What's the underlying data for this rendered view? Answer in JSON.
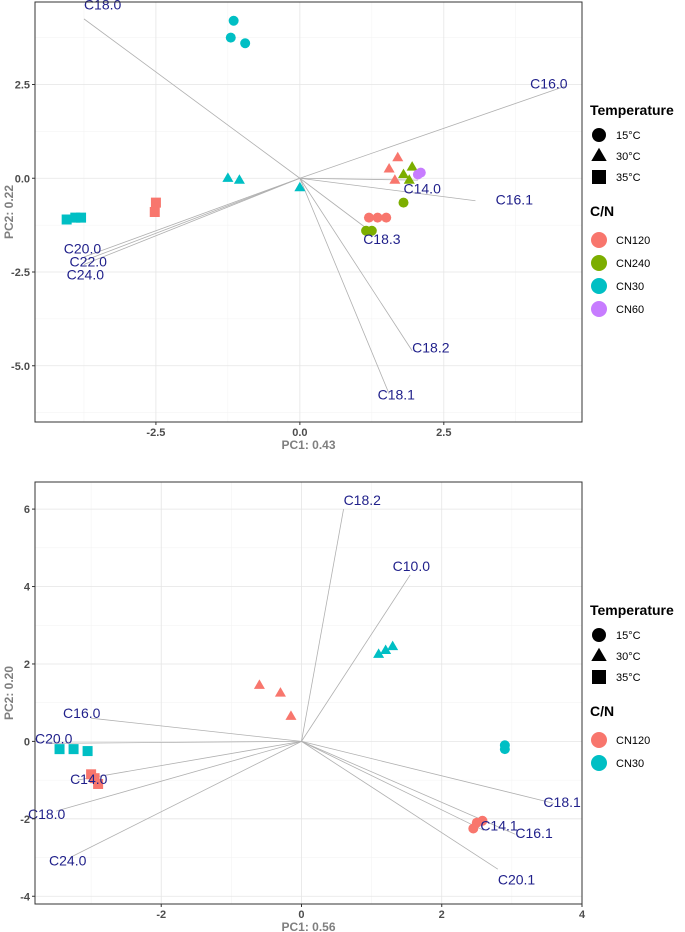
{
  "chart_data": [
    {
      "type": "scatter",
      "subtype": "pca-biplot",
      "xlabel": "PC1: 0.43",
      "ylabel": "PC2: 0.22",
      "xlim": [
        -4.6,
        4.9
      ],
      "ylim": [
        -6.5,
        4.7
      ],
      "xticks": [
        -2.5,
        0.0,
        2.5
      ],
      "xtick_labels": [
        "-2.5",
        "0.0",
        "2.5"
      ],
      "yticks": [
        2.5,
        0.0,
        -2.5,
        -5.0
      ],
      "ytick_labels": [
        "2.5",
        "0.0",
        "-2.5",
        "-5.0"
      ],
      "legend": {
        "shape_title": "Temperature",
        "shapes": [
          {
            "label": "15°C",
            "shape": "circle"
          },
          {
            "label": "30°C",
            "shape": "triangle"
          },
          {
            "label": "35°C",
            "shape": "square"
          }
        ],
        "color_title": "C/N",
        "colors": [
          {
            "label": "CN120",
            "color": "#f8766d"
          },
          {
            "label": "CN240",
            "color": "#7cae00"
          },
          {
            "label": "CN30",
            "color": "#00bfc4"
          },
          {
            "label": "CN60",
            "color": "#c77cff"
          }
        ]
      },
      "vectors": [
        {
          "label": "C18.0",
          "x": -3.75,
          "y": 4.25,
          "lx": -3.75,
          "ly": 4.5
        },
        {
          "label": "C16.0",
          "x": 4.6,
          "y": 2.45,
          "lx": 4.0,
          "ly": 2.4
        },
        {
          "label": "C14.0",
          "x": 2.05,
          "y": -0.05,
          "lx": 1.8,
          "ly": -0.4
        },
        {
          "label": "C16.1",
          "x": 3.05,
          "y": -0.6,
          "lx": 3.4,
          "ly": -0.7
        },
        {
          "label": "C18.3",
          "x": 1.3,
          "y": -1.5,
          "lx": 1.1,
          "ly": -1.75
        },
        {
          "label": "C18.2",
          "x": 1.95,
          "y": -4.6,
          "lx": 1.95,
          "ly": -4.65
        },
        {
          "label": "C18.1",
          "x": 1.55,
          "y": -5.75,
          "lx": 1.35,
          "ly": -5.9
        },
        {
          "label": "C20.0",
          "x": -3.75,
          "y": -2.1,
          "lx": -4.1,
          "ly": -2.0
        },
        {
          "label": "C22.0",
          "x": -3.75,
          "y": -2.2,
          "lx": -4.0,
          "ly": -2.35
        },
        {
          "label": "C24.0",
          "x": -3.75,
          "y": -2.3,
          "lx": -4.05,
          "ly": -2.7
        }
      ],
      "points": [
        {
          "x": -1.15,
          "y": 4.2,
          "temp": "15°C",
          "cn": "CN30"
        },
        {
          "x": -1.2,
          "y": 3.75,
          "temp": "15°C",
          "cn": "CN30"
        },
        {
          "x": -0.95,
          "y": 3.6,
          "temp": "15°C",
          "cn": "CN30"
        },
        {
          "x": -1.25,
          "y": 0.0,
          "temp": "30°C",
          "cn": "CN30"
        },
        {
          "x": -1.05,
          "y": -0.05,
          "temp": "30°C",
          "cn": "CN30"
        },
        {
          "x": 0.0,
          "y": -0.25,
          "temp": "30°C",
          "cn": "CN30"
        },
        {
          "x": -4.05,
          "y": -1.1,
          "temp": "35°C",
          "cn": "CN30"
        },
        {
          "x": -3.9,
          "y": -1.05,
          "temp": "35°C",
          "cn": "CN30"
        },
        {
          "x": -3.8,
          "y": -1.05,
          "temp": "35°C",
          "cn": "CN30"
        },
        {
          "x": -2.5,
          "y": -0.65,
          "temp": "35°C",
          "cn": "CN120"
        },
        {
          "x": -2.52,
          "y": -0.9,
          "temp": "35°C",
          "cn": "CN120"
        },
        {
          "x": 1.7,
          "y": 0.55,
          "temp": "30°C",
          "cn": "CN120"
        },
        {
          "x": 1.55,
          "y": 0.25,
          "temp": "30°C",
          "cn": "CN120"
        },
        {
          "x": 1.65,
          "y": -0.05,
          "temp": "30°C",
          "cn": "CN120"
        },
        {
          "x": 1.95,
          "y": 0.3,
          "temp": "30°C",
          "cn": "CN240"
        },
        {
          "x": 1.8,
          "y": 0.1,
          "temp": "30°C",
          "cn": "CN240"
        },
        {
          "x": 1.9,
          "y": -0.05,
          "temp": "30°C",
          "cn": "CN240"
        },
        {
          "x": 2.05,
          "y": 0.1,
          "temp": "15°C",
          "cn": "CN60"
        },
        {
          "x": 2.1,
          "y": 0.15,
          "temp": "15°C",
          "cn": "CN60"
        },
        {
          "x": 1.2,
          "y": -1.05,
          "temp": "15°C",
          "cn": "CN120"
        },
        {
          "x": 1.35,
          "y": -1.05,
          "temp": "15°C",
          "cn": "CN120"
        },
        {
          "x": 1.5,
          "y": -1.05,
          "temp": "15°C",
          "cn": "CN120"
        },
        {
          "x": 1.25,
          "y": -1.4,
          "temp": "15°C",
          "cn": "CN240"
        },
        {
          "x": 1.15,
          "y": -1.4,
          "temp": "15°C",
          "cn": "CN240"
        },
        {
          "x": 1.8,
          "y": -0.65,
          "temp": "15°C",
          "cn": "CN240"
        }
      ]
    },
    {
      "type": "scatter",
      "subtype": "pca-biplot",
      "xlabel": "PC1: 0.56",
      "ylabel": "PC2: 0.20",
      "xlim": [
        -3.8,
        4.0
      ],
      "ylim": [
        -4.2,
        6.7
      ],
      "xticks": [
        -2,
        0,
        2,
        4
      ],
      "xtick_labels": [
        "-2",
        "0",
        "2",
        "4"
      ],
      "yticks": [
        6,
        4,
        2,
        0,
        -2,
        -4
      ],
      "ytick_labels": [
        "6",
        "4",
        "2",
        "0",
        "-2",
        "-4"
      ],
      "legend": {
        "shape_title": "Temperature",
        "shapes": [
          {
            "label": "15°C",
            "shape": "circle"
          },
          {
            "label": "30°C",
            "shape": "triangle"
          },
          {
            "label": "35°C",
            "shape": "square"
          }
        ],
        "color_title": "C/N",
        "colors": [
          {
            "label": "CN120",
            "color": "#f8766d"
          },
          {
            "label": "CN30",
            "color": "#00bfc4"
          }
        ]
      },
      "vectors": [
        {
          "label": "C18.2",
          "x": 0.6,
          "y": 6.0,
          "lx": 0.6,
          "ly": 6.1
        },
        {
          "label": "C10.0",
          "x": 1.55,
          "y": 4.3,
          "lx": 1.3,
          "ly": 4.4
        },
        {
          "label": "C16.0",
          "x": -3.0,
          "y": 0.6,
          "lx": -3.4,
          "ly": 0.6
        },
        {
          "label": "C20.0",
          "x": -3.6,
          "y": -0.05,
          "lx": -3.8,
          "ly": -0.05
        },
        {
          "label": "C14.0",
          "x": -3.2,
          "y": -1.0,
          "lx": -3.3,
          "ly": -1.1
        },
        {
          "label": "C18.0",
          "x": -3.5,
          "y": -1.8,
          "lx": -3.9,
          "ly": -2.0
        },
        {
          "label": "C24.0",
          "x": -3.3,
          "y": -3.0,
          "lx": -3.6,
          "ly": -3.2
        },
        {
          "label": "C18.1",
          "x": 3.6,
          "y": -1.6,
          "lx": 3.45,
          "ly": -1.7
        },
        {
          "label": "C14.1",
          "x": 2.6,
          "y": -2.3,
          "lx": 2.55,
          "ly": -2.3
        },
        {
          "label": "C16.1",
          "x": 3.05,
          "y": -2.4,
          "lx": 3.05,
          "ly": -2.5
        },
        {
          "label": "C20.1",
          "x": 2.8,
          "y": -3.3,
          "lx": 2.8,
          "ly": -3.7
        }
      ],
      "points": [
        {
          "x": 1.1,
          "y": 2.25,
          "temp": "30°C",
          "cn": "CN30"
        },
        {
          "x": 1.2,
          "y": 2.35,
          "temp": "30°C",
          "cn": "CN30"
        },
        {
          "x": 1.3,
          "y": 2.45,
          "temp": "30°C",
          "cn": "CN30"
        },
        {
          "x": -0.6,
          "y": 1.45,
          "temp": "30°C",
          "cn": "CN120"
        },
        {
          "x": -0.3,
          "y": 1.25,
          "temp": "30°C",
          "cn": "CN120"
        },
        {
          "x": -0.15,
          "y": 0.65,
          "temp": "30°C",
          "cn": "CN120"
        },
        {
          "x": 2.9,
          "y": -0.1,
          "temp": "15°C",
          "cn": "CN30"
        },
        {
          "x": 2.9,
          "y": -0.2,
          "temp": "15°C",
          "cn": "CN30"
        },
        {
          "x": 2.5,
          "y": -2.1,
          "temp": "15°C",
          "cn": "CN120"
        },
        {
          "x": 2.58,
          "y": -2.05,
          "temp": "15°C",
          "cn": "CN120"
        },
        {
          "x": 2.45,
          "y": -2.25,
          "temp": "15°C",
          "cn": "CN120"
        },
        {
          "x": -3.45,
          "y": -0.2,
          "temp": "35°C",
          "cn": "CN30"
        },
        {
          "x": -3.25,
          "y": -0.2,
          "temp": "35°C",
          "cn": "CN30"
        },
        {
          "x": -3.05,
          "y": -0.25,
          "temp": "35°C",
          "cn": "CN30"
        },
        {
          "x": -3.0,
          "y": -0.85,
          "temp": "35°C",
          "cn": "CN120"
        },
        {
          "x": -2.95,
          "y": -0.95,
          "temp": "35°C",
          "cn": "CN120"
        },
        {
          "x": -2.9,
          "y": -1.1,
          "temp": "35°C",
          "cn": "CN120"
        }
      ]
    }
  ]
}
